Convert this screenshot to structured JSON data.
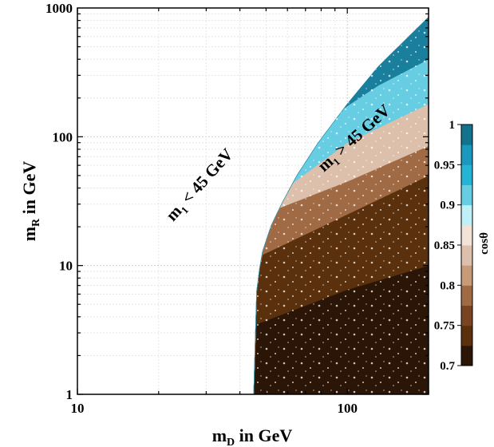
{
  "chart_data": {
    "type": "scatter",
    "xscale": "log",
    "yscale": "log",
    "xlim": [
      10,
      200
    ],
    "ylim": [
      1,
      1000
    ],
    "xticks": [
      10,
      100
    ],
    "yticks": [
      1,
      10,
      100,
      1000
    ],
    "xtick_labels": [
      "10",
      "100"
    ],
    "ytick_labels": [
      "1",
      "10",
      "100",
      "1000"
    ],
    "grid": true,
    "xlabel": {
      "main": "m",
      "sub": "D",
      "rest": " in GeV"
    },
    "ylabel": {
      "main": "m",
      "sub": "R",
      "rest": " in GeV"
    },
    "annotations": [
      {
        "prefix": "m",
        "sub": "1",
        "rest": " < 45 GeV",
        "at": [
          30,
          38
        ],
        "rotation_deg": -48
      },
      {
        "prefix": "m",
        "sub": "1",
        "rest": " > 45 GeV",
        "at": [
          96,
          90
        ],
        "rotation_deg": -42
      }
    ],
    "region": {
      "description_boundary": "populated only where m1 > 45 GeV",
      "xmin_at_bottom": 45,
      "boundary_points": [
        [
          45,
          1
        ],
        [
          46,
          6
        ],
        [
          48,
          12
        ],
        [
          52,
          20
        ],
        [
          57,
          30
        ],
        [
          65,
          50
        ],
        [
          78,
          90
        ],
        [
          100,
          180
        ],
        [
          130,
          350
        ],
        [
          170,
          620
        ],
        [
          200,
          850
        ]
      ],
      "bands": [
        {
          "cos_min": 0.7,
          "cos_max": 0.75,
          "color": "#2a1506",
          "lower_edge": [
            [
              45,
              1
            ],
            [
              200,
              1
            ]
          ],
          "upper_edge": [
            [
              46,
              3.5
            ],
            [
              100,
              6.5
            ],
            [
              200,
              10
            ]
          ]
        },
        {
          "cos_min": 0.75,
          "cos_max": 0.8,
          "color": "#5a300d",
          "lower_edge": [
            [
              46,
              3.5
            ],
            [
              100,
              6.5
            ],
            [
              200,
              10
            ]
          ],
          "upper_edge": [
            [
              48,
              12
            ],
            [
              100,
              25
            ],
            [
              200,
              50
            ]
          ]
        },
        {
          "cos_min": 0.8,
          "cos_max": 0.85,
          "color": "#a06a44",
          "lower_edge": [
            [
              48,
              12
            ],
            [
              100,
              25
            ],
            [
              200,
              50
            ]
          ],
          "upper_edge": [
            [
              56,
              28
            ],
            [
              100,
              45
            ],
            [
              200,
              85
            ]
          ]
        },
        {
          "cos_min": 0.85,
          "cos_max": 0.9,
          "color": "#dcc0ac",
          "lower_edge": [
            [
              56,
              28
            ],
            [
              100,
              45
            ],
            [
              200,
              85
            ]
          ],
          "upper_edge": [
            [
              64,
              45
            ],
            [
              100,
              90
            ],
            [
              200,
              180
            ]
          ]
        },
        {
          "cos_min": 0.9,
          "cos_max": 0.95,
          "color": "#66cde3",
          "lower_edge": [
            [
              64,
              45
            ],
            [
              100,
              90
            ],
            [
              200,
              180
            ]
          ],
          "upper_edge": [
            [
              90,
              150
            ],
            [
              130,
              250
            ],
            [
              200,
              400
            ]
          ]
        },
        {
          "cos_min": 0.95,
          "cos_max": 1.0,
          "color": "#1a7f9c",
          "lower_edge": [
            [
              90,
              150
            ],
            [
              130,
              250
            ],
            [
              200,
              400
            ]
          ],
          "upper_edge": [
            [
              100,
              180
            ],
            [
              130,
              350
            ],
            [
              200,
              850
            ]
          ]
        }
      ]
    },
    "colorbar": {
      "label": "cosθ",
      "min": 0.7,
      "max": 1.0,
      "ticks": [
        "0.7",
        "0.75",
        "0.8",
        "0.85",
        "0.9",
        "0.95",
        "1"
      ],
      "colors": [
        "#2a1506",
        "#5a300d",
        "#7a4422",
        "#a06a44",
        "#c79a78",
        "#dcc0ac",
        "#f3e2d6",
        "#bff0f8",
        "#66cde3",
        "#26b4d6",
        "#1a98bd",
        "#13738f"
      ]
    }
  }
}
